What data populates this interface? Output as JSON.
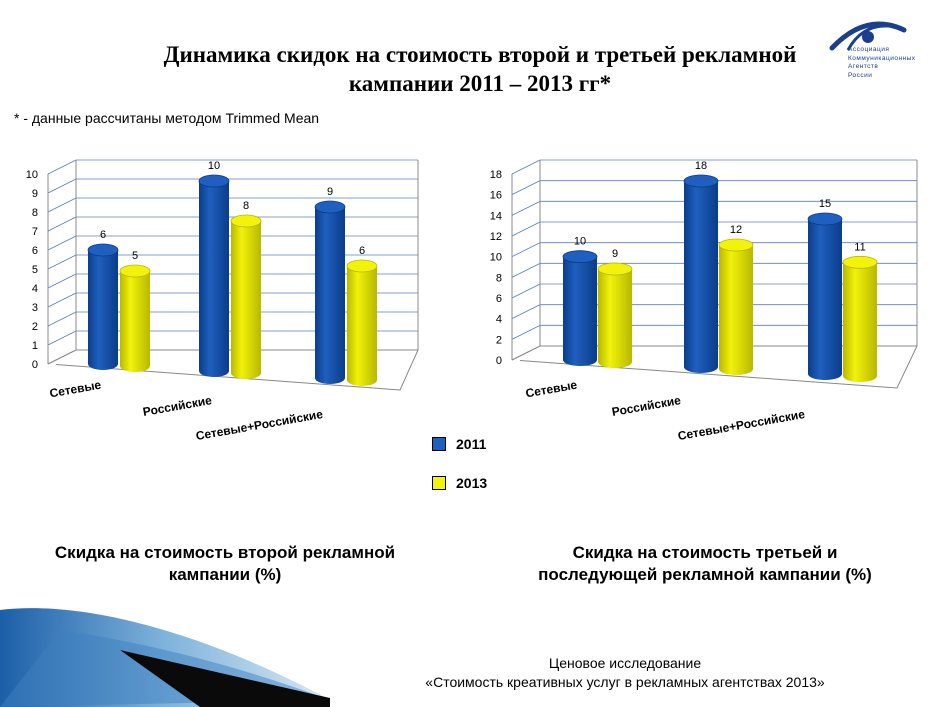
{
  "title_line1": "Динамика скидок на стоимость второй и третьей рекламной",
  "title_line2": "кампании 2011 – 2013 гг*",
  "footnote": "* - данные рассчитаны методом Trimmed Mean",
  "logo": {
    "lines": [
      "Ассоциация",
      "Коммуникационных",
      "Агентств",
      "России"
    ],
    "color": "#1a3f8f"
  },
  "legend": [
    {
      "label": "2011",
      "color": "#1f5fbf"
    },
    {
      "label": "2013",
      "color": "#f2f20a"
    }
  ],
  "chart_data": [
    {
      "type": "bar",
      "categories": [
        "Сетевые",
        "Российские",
        "Сетевые+Российские"
      ],
      "series": [
        {
          "name": "2011",
          "values": [
            6,
            10,
            9
          ]
        },
        {
          "name": "2013",
          "values": [
            5,
            8,
            6
          ]
        }
      ],
      "ylim": [
        0,
        10
      ],
      "yticks": [
        0,
        1,
        2,
        3,
        4,
        5,
        6,
        7,
        8,
        9,
        10
      ],
      "grid": true,
      "caption": "Скидка на стоимость второй рекламной кампании (%)"
    },
    {
      "type": "bar",
      "categories": [
        "Сетевые",
        "Российские",
        "Сетевые+Российские"
      ],
      "series": [
        {
          "name": "2011",
          "values": [
            10,
            18,
            15
          ]
        },
        {
          "name": "2013",
          "values": [
            9,
            12,
            11
          ]
        }
      ],
      "ylim": [
        0,
        18
      ],
      "yticks": [
        0,
        2,
        4,
        6,
        8,
        10,
        12,
        14,
        16,
        18
      ],
      "grid": true,
      "caption": "Скидка на стоимость третьей и последующей рекламной кампании (%)"
    }
  ],
  "captions": {
    "chart1_line1": "Скидка на стоимость второй рекламной",
    "chart1_line2": "кампании (%)",
    "chart2_line1": "Скидка на стоимость третьей и",
    "chart2_line2": "последующей рекламной кампании (%)"
  },
  "footer": {
    "line1": "Ценовое исследование",
    "line2": "«Стоимость креативных услуг в рекламных агентствах 2013»"
  }
}
